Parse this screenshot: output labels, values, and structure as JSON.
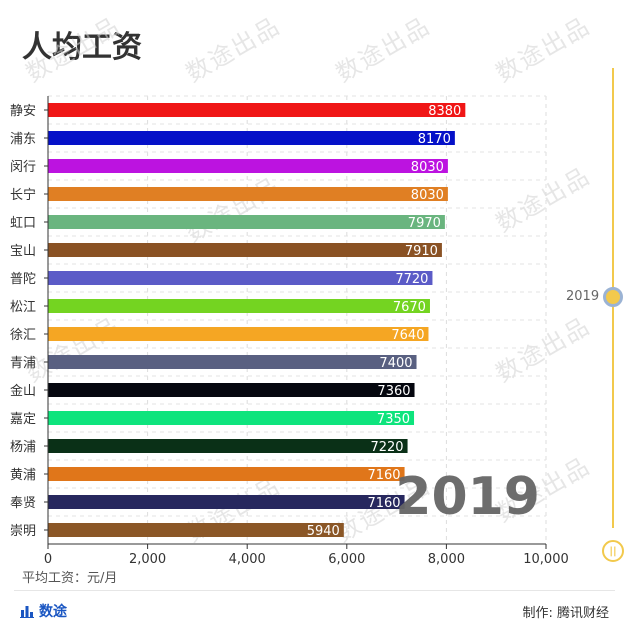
{
  "title": "人均工资",
  "watermark": "数途出品",
  "year_overlay": "2019",
  "x_unit_label": "平均工资：元/月",
  "brand": "数途",
  "credit": "制作: 腾讯财经",
  "timeline": {
    "current": "2019"
  },
  "chart_data": {
    "type": "bar",
    "orientation": "horizontal",
    "categories": [
      "静安",
      "浦东",
      "闵行",
      "长宁",
      "虹口",
      "宝山",
      "普陀",
      "松江",
      "徐汇",
      "青浦",
      "金山",
      "嘉定",
      "杨浦",
      "黄浦",
      "奉贤",
      "崇明"
    ],
    "values": [
      8380,
      8170,
      8030,
      8030,
      7970,
      7910,
      7720,
      7670,
      7640,
      7400,
      7360,
      7350,
      7220,
      7160,
      7160,
      5940
    ],
    "colors": [
      "#f01616",
      "#0511c8",
      "#bc13e0",
      "#e07f23",
      "#6ab57f",
      "#8a5224",
      "#5b5bc7",
      "#74d421",
      "#f5a623",
      "#596081",
      "#05070f",
      "#0ee47d",
      "#0a3017",
      "#e0761a",
      "#27285e",
      "#8b5727"
    ],
    "x_ticks": [
      "0",
      "2,000",
      "4,000",
      "6,000",
      "8,000",
      "10,000"
    ],
    "xlim": [
      0,
      10000
    ],
    "grid": true
  }
}
